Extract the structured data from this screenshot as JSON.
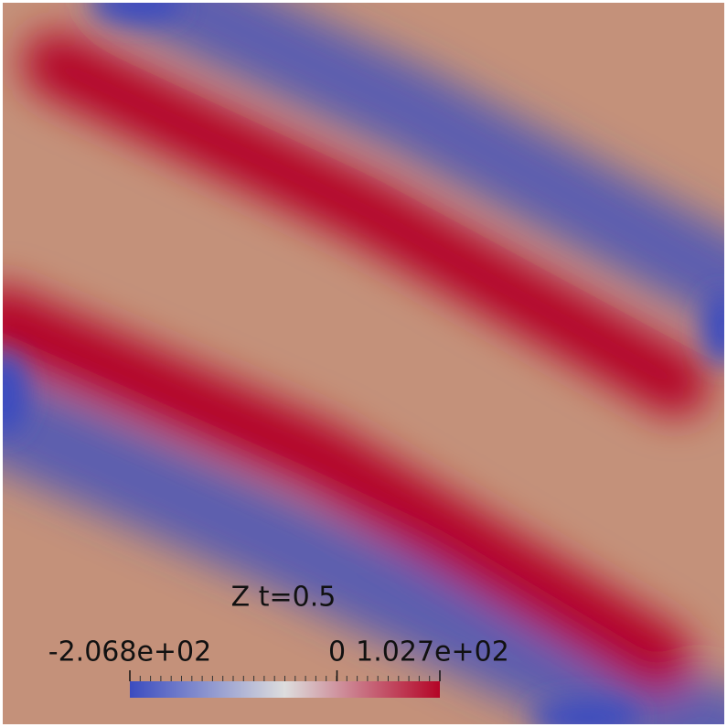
{
  "chart_data": {
    "type": "heatmap",
    "title": "Z  t=0.5",
    "background": "#c4917a",
    "colors": [
      "#3b4cc0",
      "#dddddd",
      "#b40426"
    ],
    "colorbar": {
      "lim": [
        -206.8,
        102.7
      ],
      "ticks": [
        {
          "value": -206.8,
          "label": "-2.068e+02"
        },
        0,
        {
          "value": 102.7,
          "label": "1.027e+02"
        }
      ]
    }
  }
}
